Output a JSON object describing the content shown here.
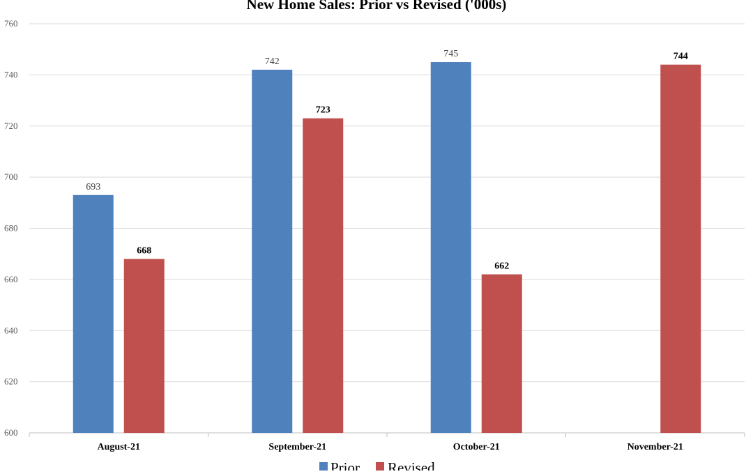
{
  "chart_data": {
    "type": "bar",
    "title": "New Home Sales: Prior vs Revised ('000s)",
    "categories": [
      "August-21",
      "September-21",
      "October-21",
      "November-21"
    ],
    "series": [
      {
        "name": "Prior",
        "color": "#4f81bd",
        "values": [
          693,
          742,
          745,
          null
        ]
      },
      {
        "name": "Revised",
        "color": "#c0504d",
        "values": [
          668,
          723,
          662,
          744
        ]
      }
    ],
    "ylim": [
      600,
      760
    ],
    "yticks": [
      600,
      620,
      640,
      660,
      680,
      700,
      720,
      740,
      760
    ],
    "grid": true,
    "legend": "bottom-center"
  }
}
